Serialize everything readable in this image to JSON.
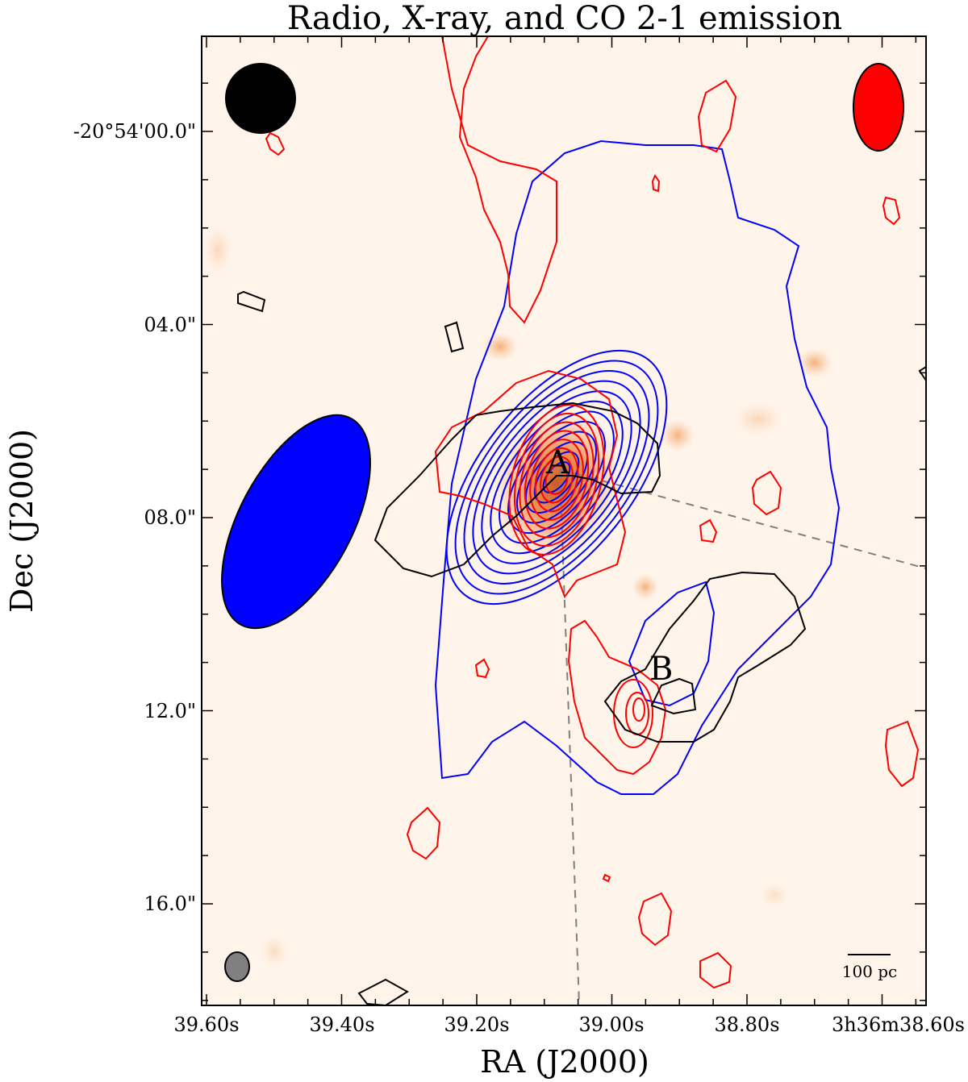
{
  "chart_data": {
    "type": "contour-overlay",
    "title": "Radio, X-ray, and CO 2-1 emission",
    "xlabel": "RA (J2000)",
    "ylabel": "Dec (J2000)",
    "x_ticks": [
      "39.60s",
      "39.40s",
      "39.20s",
      "39.00s",
      "38.80s",
      "3h36m38.60s"
    ],
    "y_ticks": [
      "-20°54'00.0\"",
      "04.0\"",
      "08.0\"",
      "12.0\"",
      "16.0\""
    ],
    "sources": [
      {
        "label": "A"
      },
      {
        "label": "B"
      }
    ],
    "scale_bar_label": "100 pc",
    "colors": {
      "background": "#fff4ea",
      "radio_contours": "#0000ff",
      "xray_contours": "#000000",
      "co_contours": "#ff0000",
      "heat_core": "#e8732a",
      "beam_radio": "#0000ff",
      "beam_co": "#ff0000",
      "beam_xray": "#000000",
      "beam_small": "#808080",
      "guide_lines": "#808080"
    }
  }
}
